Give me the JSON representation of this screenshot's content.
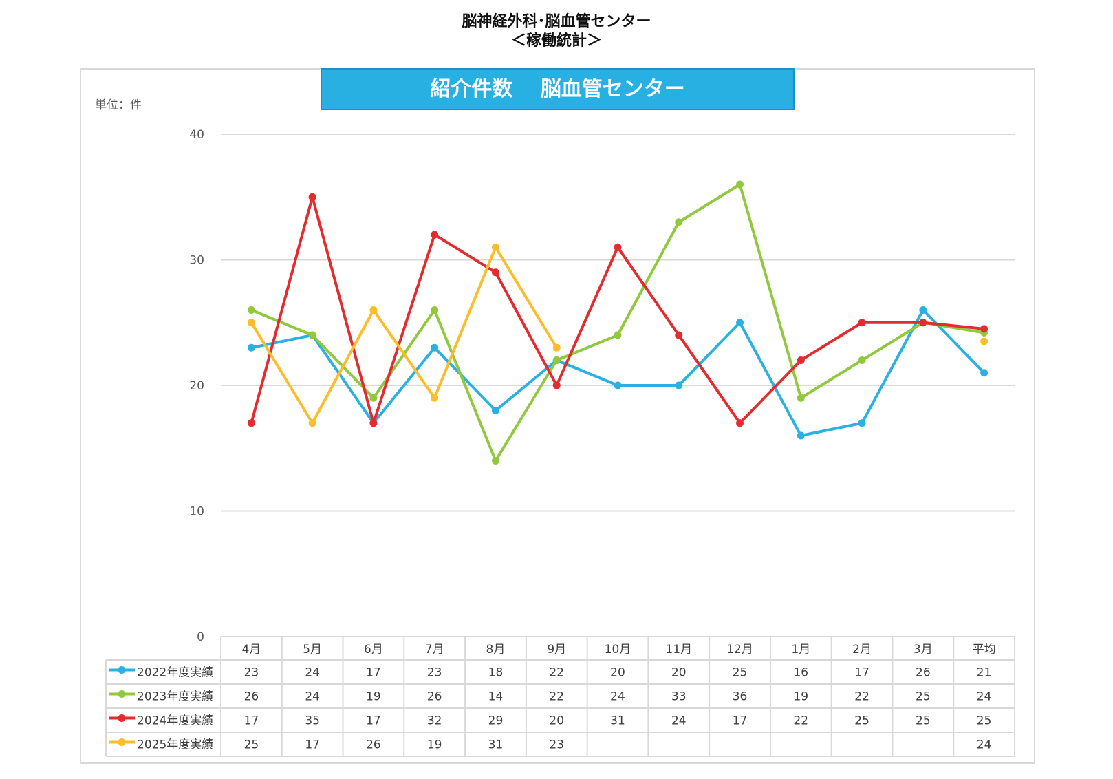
{
  "page": {
    "title_line1": "脳神経外科･脳血管センター",
    "title_line2": "＜稼働統計＞"
  },
  "chart_data": {
    "type": "line",
    "title": "紹介件数　 脳血管センター",
    "unit_label": "単位：件",
    "categories": [
      "4月",
      "5月",
      "6月",
      "7月",
      "8月",
      "9月",
      "10月",
      "11月",
      "12月",
      "1月",
      "2月",
      "3月",
      "平均"
    ],
    "ylim": [
      0,
      40
    ],
    "yticks": [
      0,
      10,
      20,
      30,
      40
    ],
    "grid": true,
    "legend": "data-table-left",
    "series": [
      {
        "name": "2022年度実績",
        "color": "#2bb0e2",
        "values": [
          23,
          24,
          17,
          23,
          18,
          22,
          20,
          20,
          25,
          16,
          17,
          26,
          21
        ],
        "avg_exact": 21
      },
      {
        "name": "2023年度実績",
        "color": "#92c83e",
        "values": [
          26,
          24,
          19,
          26,
          14,
          22,
          24,
          33,
          36,
          19,
          22,
          25,
          24
        ],
        "avg_exact": 24.2
      },
      {
        "name": "2024年度実績",
        "color": "#e32c2f",
        "values": [
          17,
          35,
          17,
          32,
          29,
          20,
          31,
          24,
          17,
          22,
          25,
          25,
          25
        ],
        "avg_exact": 24.5
      },
      {
        "name": "2025年度実績",
        "color": "#fbbd2b",
        "values": [
          25,
          17,
          26,
          19,
          31,
          23,
          null,
          null,
          null,
          null,
          null,
          null,
          24
        ],
        "avg_exact": 23.5
      }
    ]
  }
}
